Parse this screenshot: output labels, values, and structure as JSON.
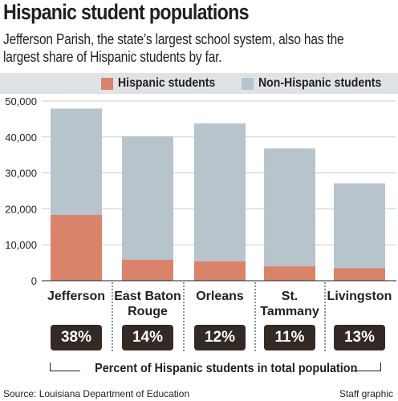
{
  "title": "Hispanic student populations",
  "subtitle": "Jefferson Parish, the state’s largest school system, also has the largest share of Hispanic students by far.",
  "legend": {
    "hispanic": "Hispanic students",
    "non_hispanic": "Non-Hispanic students"
  },
  "colors": {
    "hispanic": "#d9836a",
    "non_hispanic": "#b7c4cc",
    "badge": "#332a26",
    "legend_band": "#dfe3e6"
  },
  "percent_caption": "Percent of Hispanic students in total population",
  "source": "Source: Louisiana Department of Education",
  "credit": "Staff graphic",
  "chart_data": {
    "type": "bar",
    "stacked": true,
    "categories": [
      "Jefferson",
      "East Baton Rouge",
      "Orleans",
      "St. Tammany",
      "Livingston"
    ],
    "category_lines": [
      [
        "Jefferson"
      ],
      [
        "East Baton",
        "Rouge"
      ],
      [
        "Orleans"
      ],
      [
        "St.",
        "Tammany"
      ],
      [
        "Livingston"
      ]
    ],
    "series": [
      {
        "name": "Hispanic students",
        "values": [
          18300,
          5800,
          5400,
          4000,
          3500
        ]
      },
      {
        "name": "Non-Hispanic students",
        "values": [
          29600,
          34400,
          38400,
          32800,
          23600
        ]
      }
    ],
    "percent_labels": [
      "38%",
      "14%",
      "12%",
      "11%",
      "13%"
    ],
    "ylim": [
      0,
      50000
    ],
    "yticks": [
      "0",
      "10,000",
      "20,000",
      "30,000",
      "40,000",
      "50,000"
    ],
    "ytick_values": [
      0,
      10000,
      20000,
      30000,
      40000,
      50000
    ],
    "grid": true,
    "legend_position": "top"
  }
}
